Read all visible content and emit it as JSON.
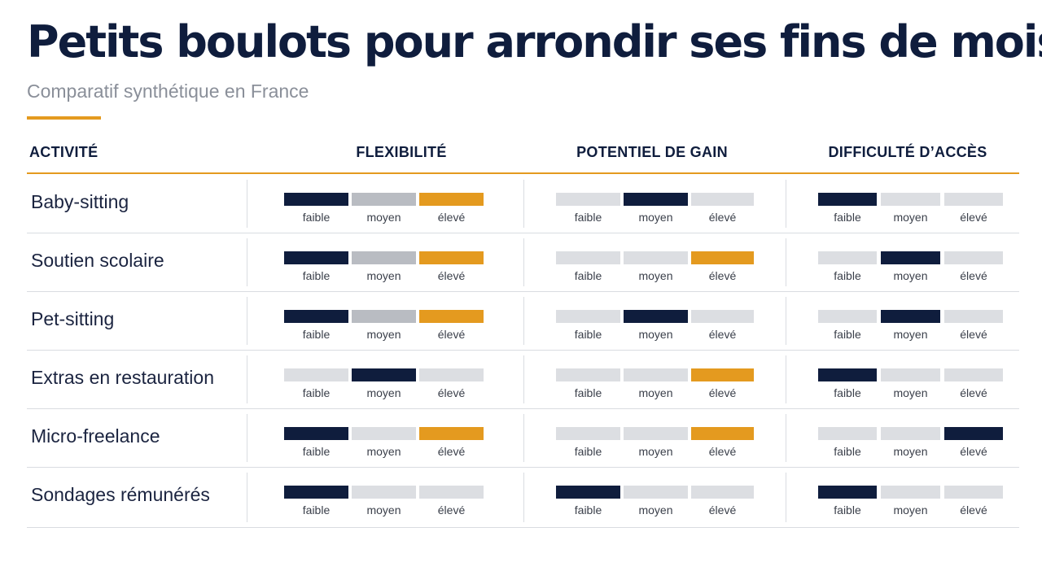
{
  "title": "Petits boulots pour arrondir ses fins de mois",
  "subtitle": "Comparatif synthétique en France",
  "headers": {
    "activity": "ACTIVITÉ",
    "flexibility": "FLEXIBILITÉ",
    "gain": "POTENTIEL DE GAIN",
    "difficulty": "DIFFICULTÉ D’ACCÈS"
  },
  "levels": [
    "faible",
    "moyen",
    "élevé"
  ],
  "colors": {
    "navy": "#0f1d3d",
    "orange": "#e49a1f",
    "gray_mid": "#b9bcc2",
    "gray_light": "#dcdee2"
  },
  "rows": [
    {
      "name": "Baby-sitting",
      "flexibility": [
        "navy",
        "gray_mid",
        "orange"
      ],
      "gain": [
        "gray_light",
        "navy",
        "gray_light"
      ],
      "difficulty": [
        "navy",
        "gray_light",
        "gray_light"
      ]
    },
    {
      "name": "Soutien scolaire",
      "flexibility": [
        "navy",
        "gray_mid",
        "orange"
      ],
      "gain": [
        "gray_light",
        "gray_light",
        "orange"
      ],
      "difficulty": [
        "gray_light",
        "navy",
        "gray_light"
      ]
    },
    {
      "name": "Pet-sitting",
      "flexibility": [
        "navy",
        "gray_mid",
        "orange"
      ],
      "gain": [
        "gray_light",
        "navy",
        "gray_light"
      ],
      "difficulty": [
        "gray_light",
        "navy",
        "gray_light"
      ]
    },
    {
      "name": "Extras en restauration",
      "flexibility": [
        "gray_light",
        "navy",
        "gray_light"
      ],
      "gain": [
        "gray_light",
        "gray_light",
        "orange"
      ],
      "difficulty": [
        "navy",
        "gray_light",
        "gray_light"
      ]
    },
    {
      "name": "Micro-freelance",
      "flexibility": [
        "navy",
        "gray_light",
        "orange"
      ],
      "gain": [
        "gray_light",
        "gray_light",
        "orange"
      ],
      "difficulty": [
        "gray_light",
        "gray_light",
        "navy"
      ]
    },
    {
      "name": "Sondages rémunérés",
      "flexibility": [
        "navy",
        "gray_light",
        "gray_light"
      ],
      "gain": [
        "navy",
        "gray_light",
        "gray_light"
      ],
      "difficulty": [
        "navy",
        "gray_light",
        "gray_light"
      ]
    }
  ]
}
